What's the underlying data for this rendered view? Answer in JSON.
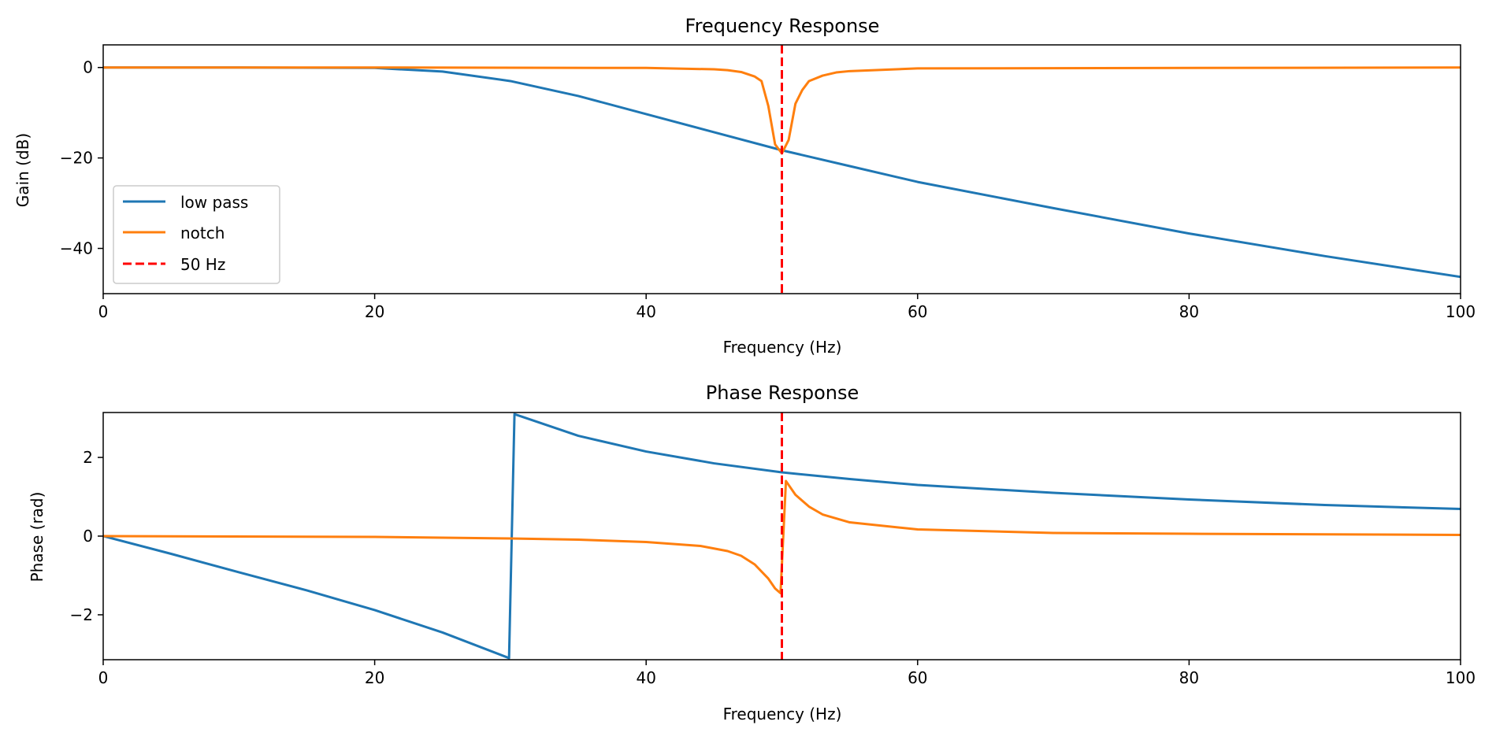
{
  "chart_data": [
    {
      "type": "line",
      "title": "Frequency Response",
      "xlabel": "Frequency (Hz)",
      "ylabel": "Gain (dB)",
      "xlim": [
        0,
        100
      ],
      "ylim": [
        -50,
        5
      ],
      "xticks": [
        0,
        20,
        40,
        60,
        80,
        100
      ],
      "yticks": [
        0,
        -20,
        -40
      ],
      "ytick_labels": [
        "0",
        "−20",
        "−40"
      ],
      "grid": false,
      "legend": {
        "position": "lower-left",
        "entries": [
          "low pass",
          "notch",
          "50 Hz"
        ]
      },
      "colors": {
        "low pass": "#1f77b4",
        "notch": "#ff7f0e",
        "50 Hz": "#ff0000"
      },
      "vline": {
        "name": "50 Hz",
        "x": 50,
        "style": "dashed"
      },
      "series": [
        {
          "name": "low pass",
          "x": [
            0,
            10,
            20,
            25,
            30,
            35,
            40,
            45,
            50,
            55,
            60,
            70,
            80,
            90,
            100
          ],
          "y": [
            0,
            0,
            -0.1,
            -0.9,
            -3.0,
            -6.3,
            -10.3,
            -14.3,
            -18.3,
            -21.8,
            -25.3,
            -31.1,
            -36.7,
            -41.7,
            -46.3
          ]
        },
        {
          "name": "notch",
          "x": [
            0,
            20,
            40,
            45,
            46,
            47,
            48,
            48.5,
            49,
            49.5,
            50,
            50.5,
            51,
            51.5,
            52,
            53,
            54,
            55,
            60,
            100
          ],
          "y": [
            0,
            0,
            -0.1,
            -0.4,
            -0.6,
            -1.0,
            -2.0,
            -3.0,
            -8.5,
            -17,
            -19,
            -16,
            -8,
            -5,
            -3,
            -1.8,
            -1.1,
            -0.8,
            -0.2,
            0
          ]
        }
      ]
    },
    {
      "type": "line",
      "title": "Phase Response",
      "xlabel": "Frequency (Hz)",
      "ylabel": "Phase (rad)",
      "xlim": [
        0,
        100
      ],
      "ylim": [
        -3.14159,
        3.14159
      ],
      "xticks": [
        0,
        20,
        40,
        60,
        80,
        100
      ],
      "yticks": [
        2,
        0,
        -2
      ],
      "ytick_labels": [
        "2",
        "0",
        "−2"
      ],
      "grid": false,
      "vline": {
        "name": "50 Hz",
        "x": 50,
        "style": "dashed"
      },
      "colors": {
        "low pass": "#1f77b4",
        "notch": "#ff7f0e",
        "50 Hz": "#ff0000"
      },
      "series": [
        {
          "name": "low pass",
          "x": [
            0,
            5,
            10,
            15,
            20,
            25,
            29.9,
            30.3,
            35,
            40,
            45,
            50,
            55,
            60,
            70,
            80,
            90,
            100
          ],
          "y": [
            0,
            -0.45,
            -0.92,
            -1.38,
            -1.88,
            -2.45,
            -3.1,
            3.1,
            2.55,
            2.15,
            1.85,
            1.62,
            1.45,
            1.3,
            1.1,
            0.93,
            0.79,
            0.69
          ]
        },
        {
          "name": "notch",
          "x": [
            0,
            20,
            30,
            35,
            40,
            44,
            46,
            47,
            48,
            49,
            49.5,
            49.9,
            50.3,
            51,
            52,
            53,
            55,
            60,
            70,
            80,
            100
          ],
          "y": [
            0,
            -0.02,
            -0.06,
            -0.09,
            -0.15,
            -0.25,
            -0.38,
            -0.5,
            -0.72,
            -1.08,
            -1.33,
            -1.45,
            1.4,
            1.05,
            0.75,
            0.55,
            0.35,
            0.17,
            0.08,
            0.06,
            0.03
          ]
        }
      ]
    }
  ]
}
